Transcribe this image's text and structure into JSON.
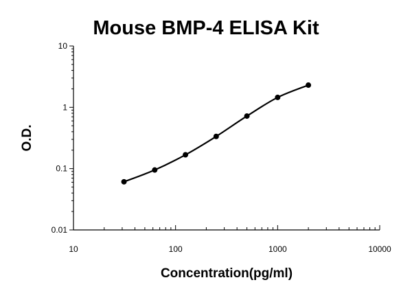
{
  "chart_data": {
    "type": "scatter",
    "title": "Mouse BMP-4 ELISA Kit",
    "xlabel": "Concentration(pg/ml)",
    "ylabel": "O.D.",
    "x_scale": "log",
    "y_scale": "log",
    "xlim": [
      10,
      10000
    ],
    "ylim": [
      0.01,
      10
    ],
    "x_ticks": [
      {
        "value": 10,
        "label": "10"
      },
      {
        "value": 100,
        "label": "100"
      },
      {
        "value": 1000,
        "label": "1000"
      },
      {
        "value": 10000,
        "label": "10000"
      }
    ],
    "y_ticks": [
      {
        "value": 0.01,
        "label": "0.01"
      },
      {
        "value": 0.1,
        "label": "0.1"
      },
      {
        "value": 1,
        "label": "1"
      },
      {
        "value": 10,
        "label": "10"
      }
    ],
    "grid": false,
    "legend": false,
    "series": [
      {
        "x": [
          31.25,
          62.5,
          125,
          250,
          500,
          1000,
          2000
        ],
        "y": [
          0.061,
          0.095,
          0.168,
          0.335,
          0.72,
          1.45,
          2.3
        ],
        "marker": "circle",
        "line": "smooth",
        "color": "#000000"
      }
    ]
  }
}
